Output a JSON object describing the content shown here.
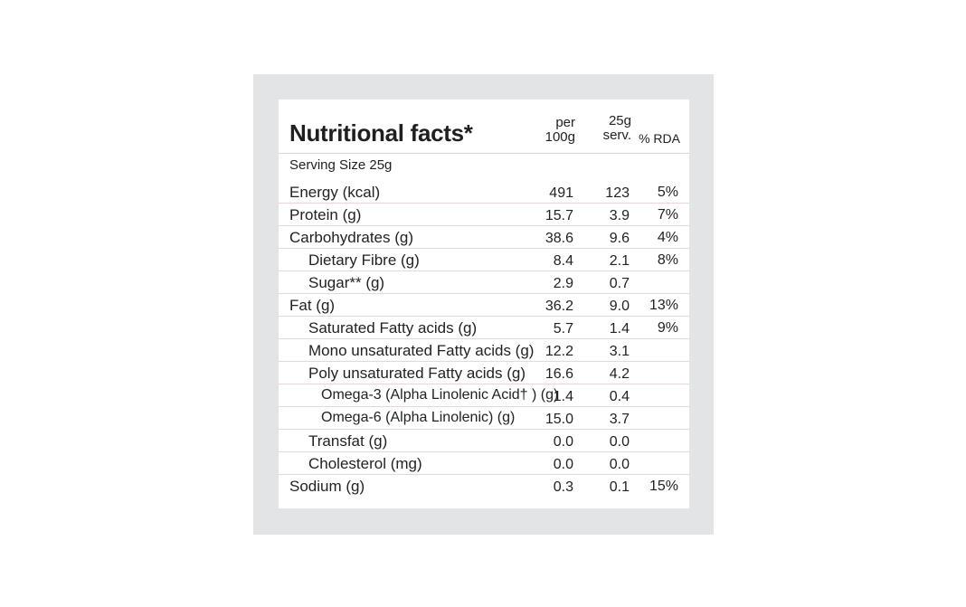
{
  "title": "Nutritional facts*",
  "columns": {
    "per100_line1": "per",
    "per100_line2": "100g",
    "serv_line1": "25g",
    "serv_line2": "serv.",
    "rda": "% RDA"
  },
  "serving_size": "Serving Size 25g",
  "rows": [
    {
      "label": "Energy (kcal)",
      "per100": "491",
      "serv": "123",
      "rda": "5%"
    },
    {
      "label": "Protein (g)",
      "per100": "15.7",
      "serv": "3.9",
      "rda": "7%"
    },
    {
      "label": "Carbohydrates (g)",
      "per100": "38.6",
      "serv": "9.6",
      "rda": "4%"
    },
    {
      "label": "Dietary Fibre (g)",
      "per100": "8.4",
      "serv": "2.1",
      "rda": "8%"
    },
    {
      "label": "Sugar** (g)",
      "per100": "2.9",
      "serv": "0.7",
      "rda": ""
    },
    {
      "label": "Fat (g)",
      "per100": "36.2",
      "serv": "9.0",
      "rda": "13%"
    },
    {
      "label": "Saturated Fatty acids (g)",
      "per100": "5.7",
      "serv": "1.4",
      "rda": "9%"
    },
    {
      "label": "Mono unsaturated Fatty acids (g)",
      "per100": "12.2",
      "serv": "3.1",
      "rda": ""
    },
    {
      "label": "Poly unsaturated Fatty acids (g)",
      "per100": "16.6",
      "serv": "4.2",
      "rda": ""
    },
    {
      "label": "Omega-3 (Alpha Linolenic Acid† ) (g)",
      "per100": "1.4",
      "serv": "0.4",
      "rda": ""
    },
    {
      "label": "Omega-6 (Alpha Linolenic) (g)",
      "per100": "15.0",
      "serv": "3.7",
      "rda": ""
    },
    {
      "label": "Transfat (g)",
      "per100": "0.0",
      "serv": "0.0",
      "rda": ""
    },
    {
      "label": "Cholesterol (mg)",
      "per100": "0.0",
      "serv": "0.0",
      "rda": ""
    },
    {
      "label": "Sodium (g)",
      "per100": "0.3",
      "serv": "0.1",
      "rda": "15%"
    }
  ]
}
